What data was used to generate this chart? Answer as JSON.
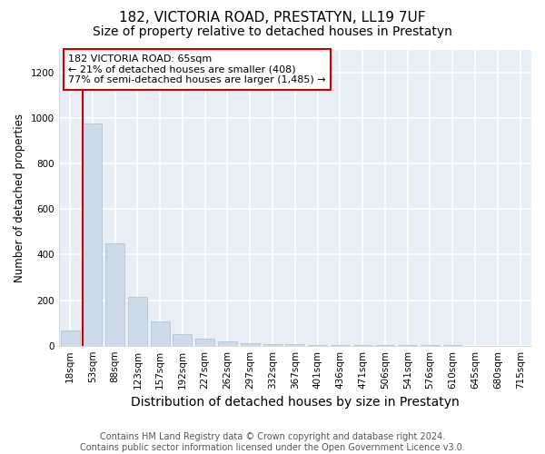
{
  "title": "182, VICTORIA ROAD, PRESTATYN, LL19 7UF",
  "subtitle": "Size of property relative to detached houses in Prestatyn",
  "xlabel": "Distribution of detached houses by size in Prestatyn",
  "ylabel": "Number of detached properties",
  "bin_labels": [
    "18sqm",
    "53sqm",
    "88sqm",
    "123sqm",
    "157sqm",
    "192sqm",
    "227sqm",
    "262sqm",
    "297sqm",
    "332sqm",
    "367sqm",
    "401sqm",
    "436sqm",
    "471sqm",
    "506sqm",
    "541sqm",
    "576sqm",
    "610sqm",
    "645sqm",
    "680sqm",
    "715sqm"
  ],
  "bar_values": [
    65,
    975,
    450,
    215,
    105,
    50,
    30,
    20,
    12,
    8,
    5,
    3,
    2,
    2,
    1,
    1,
    1,
    1,
    0,
    0,
    0
  ],
  "bar_color": "#ccdaea",
  "bar_edgecolor": "#aabfcf",
  "red_line_x": 0.575,
  "red_line_color": "#cc0000",
  "annotation_text": "182 VICTORIA ROAD: 65sqm\n← 21% of detached houses are smaller (408)\n77% of semi-detached houses are larger (1,485) →",
  "annotation_box_color": "#ffffff",
  "annotation_border_color": "#cc0000",
  "ylim": [
    0,
    1300
  ],
  "yticks": [
    0,
    200,
    400,
    600,
    800,
    1000,
    1200
  ],
  "footer_text": "Contains HM Land Registry data © Crown copyright and database right 2024.\nContains public sector information licensed under the Open Government Licence v3.0.",
  "background_color": "#ffffff",
  "plot_background_color": "#e8eef5",
  "grid_color": "#ffffff",
  "title_fontsize": 11,
  "subtitle_fontsize": 10,
  "xlabel_fontsize": 10,
  "ylabel_fontsize": 8.5,
  "tick_fontsize": 7.5,
  "annotation_fontsize": 8,
  "footer_fontsize": 7
}
